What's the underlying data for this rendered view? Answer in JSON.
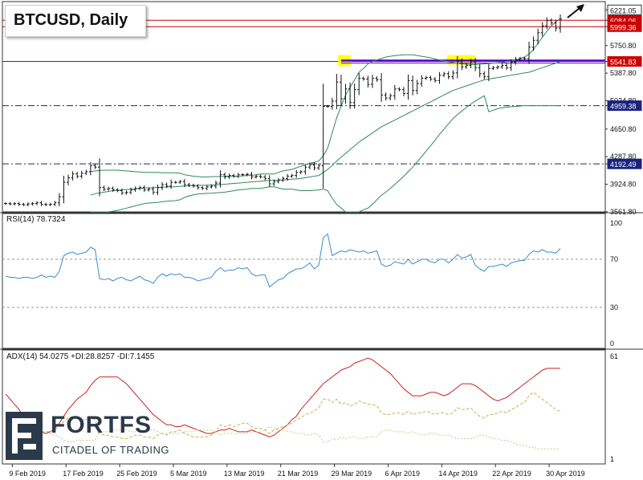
{
  "title": "BTCUSD, Daily",
  "brand": {
    "name": "FORTFS",
    "tagline": "CITADEL OF TRADING"
  },
  "colors": {
    "candle": "#111111",
    "bollinger": "#2e8b57",
    "rsi": "#3c8dd0",
    "adx": "#cc2222",
    "di_plus": "#c8b45a",
    "di_minus": "#c8c890",
    "level_red": "#cc0000",
    "level_blue": "#1a237e",
    "highlight": "#ffff00",
    "purple": "#5500cc"
  },
  "chart_data": [
    {
      "type": "candlestick",
      "title": "BTCUSD, Daily",
      "yticks": [
        "6221.05",
        "6084.06",
        "5999.36",
        "5750.80",
        "5541.83",
        "5387.80",
        "5024.80",
        "4959.38",
        "4650.80",
        "4287.80",
        "4192.49",
        "3924.80",
        "3561.80"
      ],
      "ylim": [
        3560,
        6330
      ],
      "price_tags": [
        {
          "label": "6221.05",
          "value": 6221.05,
          "style": "plain"
        },
        {
          "label": "6084.06",
          "value": 6084.06,
          "style": "red"
        },
        {
          "label": "5999.36",
          "value": 5999.36,
          "style": "red"
        },
        {
          "label": "5541.83",
          "value": 5541.83,
          "style": "red"
        },
        {
          "label": "4959.38",
          "value": 4959.38,
          "style": "blue"
        },
        {
          "label": "4192.49",
          "value": 4192.49,
          "style": "blue"
        }
      ],
      "levels": [
        {
          "value": 6084.06,
          "style": "solid-red"
        },
        {
          "value": 5999.36,
          "style": "solid-red"
        },
        {
          "value": 5541.83,
          "style": "solid-red"
        },
        {
          "value": 4959.38,
          "style": "dashdot-blue"
        },
        {
          "value": 4192.49,
          "style": "dashdot-blue"
        }
      ],
      "closes": [
        3670,
        3665,
        3670,
        3660,
        3655,
        3665,
        3670,
        3680,
        3660,
        3655,
        3660,
        3680,
        3760,
        3950,
        4010,
        4060,
        4030,
        4070,
        4090,
        4170,
        4150,
        3880,
        3860,
        3870,
        3850,
        3840,
        3810,
        3820,
        3850,
        3870,
        3880,
        3850,
        3860,
        3820,
        3880,
        3920,
        3900,
        3950,
        3950,
        3960,
        3920,
        3910,
        3900,
        3880,
        3870,
        3890,
        3900,
        3940,
        4050,
        4020,
        4040,
        4030,
        4050,
        4050,
        4055,
        4020,
        4030,
        4020,
        4000,
        3930,
        3960,
        3980,
        4000,
        4030,
        4040,
        4080,
        4090,
        4150,
        4180,
        4140,
        4170,
        4950,
        4950,
        5020,
        5270,
        5050,
        5180,
        5000,
        5170,
        5320,
        5310,
        5240,
        5320,
        5300,
        5100,
        5060,
        5090,
        5180,
        5170,
        5120,
        5290,
        5160,
        5250,
        5320,
        5330,
        5310,
        5290,
        5360,
        5380,
        5340,
        5390,
        5540,
        5470,
        5490,
        5540,
        5460,
        5380,
        5340,
        5450,
        5460,
        5470,
        5490,
        5460,
        5530,
        5570,
        5580,
        5580,
        5730,
        5820,
        5920,
        6010,
        6080,
        6050,
        5980,
        6100
      ],
      "bollinger": {
        "upper": [
          null,
          null,
          null,
          null,
          null,
          null,
          null,
          null,
          null,
          null,
          null,
          null,
          null,
          null,
          null,
          null,
          null,
          null,
          null,
          4090,
          4100,
          4105,
          4110,
          4110,
          4110,
          4110,
          4105,
          4100,
          4095,
          4090,
          4085,
          4080,
          4080,
          4080,
          4080,
          4075,
          4075,
          4075,
          4075,
          4070,
          4050,
          4040,
          4030,
          4025,
          4020,
          4020,
          4025,
          4025,
          4025,
          4030,
          4030,
          4030,
          4030,
          4035,
          4040,
          4040,
          4050,
          4060,
          4060,
          4060,
          4060,
          4080,
          4100,
          4110,
          4120,
          4140,
          4160,
          4180,
          4200,
          4215,
          4230,
          4300,
          4400,
          4600,
          4800,
          4950,
          5100,
          5200,
          5300,
          5400,
          5450,
          5510,
          5540,
          5560,
          5580,
          5600,
          5610,
          5620,
          5625,
          5630,
          5630,
          5630,
          5620,
          5610,
          5600,
          5590,
          5575,
          5560,
          5550,
          5540,
          5530,
          5520,
          5510,
          5505,
          5500,
          5500,
          5505,
          5510,
          5515,
          5520,
          5525,
          5530,
          5540,
          5550,
          5560,
          5580,
          5600,
          5640,
          5700,
          5780,
          5860,
          5940,
          6010,
          6060,
          6110
        ],
        "middle": [
          null,
          null,
          null,
          null,
          null,
          null,
          null,
          null,
          null,
          null,
          null,
          null,
          null,
          null,
          null,
          null,
          null,
          null,
          null,
          3780,
          3800,
          3810,
          3820,
          3830,
          3840,
          3845,
          3850,
          3855,
          3860,
          3865,
          3870,
          3875,
          3878,
          3880,
          3882,
          3885,
          3888,
          3890,
          3892,
          3895,
          3900,
          3905,
          3908,
          3910,
          3910,
          3912,
          3915,
          3918,
          3920,
          3925,
          3930,
          3935,
          3940,
          3945,
          3950,
          3955,
          3960,
          3965,
          3970,
          3975,
          3975,
          3978,
          3980,
          3985,
          3990,
          3995,
          4000,
          4010,
          4020,
          4030,
          4040,
          4080,
          4120,
          4170,
          4230,
          4280,
          4330,
          4380,
          4430,
          4480,
          4520,
          4560,
          4600,
          4640,
          4680,
          4710,
          4740,
          4770,
          4800,
          4830,
          4860,
          4890,
          4920,
          4950,
          4980,
          5010,
          5040,
          5070,
          5100,
          5130,
          5160,
          5180,
          5200,
          5220,
          5240,
          5260,
          5280,
          5300,
          5310,
          5320,
          5330,
          5340,
          5350,
          5360,
          5370,
          5380,
          5390,
          5400,
          5420,
          5440,
          5460,
          5480,
          5500,
          5520,
          5540
        ],
        "lower": [
          null,
          null,
          null,
          null,
          null,
          null,
          null,
          null,
          null,
          null,
          null,
          null,
          null,
          null,
          null,
          null,
          null,
          null,
          null,
          3470,
          3500,
          3515,
          3530,
          3550,
          3570,
          3580,
          3595,
          3610,
          3625,
          3640,
          3655,
          3670,
          3676,
          3680,
          3684,
          3695,
          3700,
          3705,
          3709,
          3720,
          3750,
          3770,
          3786,
          3795,
          3800,
          3804,
          3805,
          3811,
          3815,
          3820,
          3830,
          3840,
          3850,
          3855,
          3860,
          3870,
          3870,
          3870,
          3880,
          3890,
          3890,
          3876,
          3860,
          3860,
          3860,
          3850,
          3840,
          3840,
          3840,
          3845,
          3850,
          3860,
          3840,
          3740,
          3660,
          3610,
          3560,
          3560,
          3560,
          3560,
          3590,
          3610,
          3660,
          3720,
          3780,
          3820,
          3870,
          3920,
          3975,
          4030,
          4090,
          4150,
          4220,
          4290,
          4360,
          4430,
          4505,
          4580,
          4650,
          4720,
          4790,
          4840,
          4890,
          4935,
          4980,
          5020,
          5055,
          5090,
          4880,
          4900,
          4920,
          4930,
          4940,
          4945,
          4950,
          4955,
          4960,
          4960,
          4960,
          4960,
          4960,
          4960,
          4960,
          4960,
          4960
        ]
      }
    },
    {
      "type": "line",
      "legend": "RSI(14) 78.7324",
      "yticks": [
        "100",
        "70",
        "30",
        "0"
      ],
      "levels": [
        70,
        30
      ],
      "ylim": [
        0,
        100
      ],
      "series": [
        {
          "values": [
            56,
            55,
            55,
            54,
            55,
            55,
            54,
            55,
            57,
            55,
            56,
            55,
            60,
            73,
            75,
            76,
            74,
            75,
            76,
            80,
            78,
            54,
            53,
            54,
            52,
            54,
            55,
            53,
            52,
            54,
            56,
            53,
            52,
            50,
            55,
            58,
            56,
            58,
            57,
            58,
            55,
            55,
            54,
            52,
            53,
            54,
            55,
            60,
            63,
            60,
            61,
            61,
            63,
            62,
            63,
            58,
            56,
            57,
            57,
            47,
            50,
            53,
            54,
            58,
            60,
            62,
            62,
            64,
            67,
            62,
            65,
            88,
            91,
            73,
            75,
            77,
            76,
            78,
            77,
            76,
            77,
            75,
            76,
            77,
            66,
            64,
            65,
            68,
            67,
            66,
            70,
            66,
            68,
            70,
            70,
            68,
            67,
            70,
            70,
            67,
            70,
            74,
            71,
            72,
            74,
            65,
            62,
            60,
            64,
            64,
            65,
            66,
            64,
            67,
            68,
            69,
            69,
            74,
            77,
            76,
            78,
            76,
            76,
            75,
            79
          ]
        }
      ]
    },
    {
      "type": "line",
      "legend": "ADX(14) 54.0275 +DI:28.8257 -DI:7.1455",
      "yticks": [
        "61",
        "1"
      ],
      "ylim": [
        1,
        61
      ],
      "series": [
        {
          "values": [
            39,
            36,
            33,
            30,
            26,
            24,
            20,
            18,
            17,
            16,
            17,
            19,
            22,
            26,
            30,
            33,
            36,
            38,
            40,
            44,
            47,
            49,
            49,
            49,
            49,
            49,
            47,
            45,
            42,
            39,
            36,
            33,
            30,
            27,
            25,
            23,
            21,
            21,
            20,
            20,
            21,
            20,
            19,
            18,
            17,
            16,
            16,
            17,
            18,
            18,
            19,
            18,
            17,
            17,
            17,
            18,
            17,
            16,
            15,
            14,
            15,
            17,
            19,
            21,
            24,
            26,
            30,
            33,
            36,
            39,
            42,
            45,
            47,
            49,
            51,
            53,
            54,
            55,
            57,
            58,
            59,
            60,
            59,
            57,
            55,
            53,
            51,
            48,
            45,
            42,
            40,
            38,
            38,
            38,
            39,
            40,
            40,
            39,
            38,
            39,
            41,
            43,
            45,
            45,
            45,
            44,
            42,
            40,
            38,
            36,
            35,
            36,
            37,
            39,
            41,
            43,
            45,
            47,
            49,
            51,
            53,
            54,
            54,
            54,
            54
          ]
        },
        {
          "values": [
            25,
            24,
            22,
            21,
            20,
            19,
            18,
            18,
            17,
            17,
            17,
            18,
            20,
            23,
            25,
            26,
            25,
            24,
            24,
            25,
            24,
            16,
            15,
            15,
            14,
            14,
            13,
            13,
            14,
            15,
            15,
            14,
            14,
            13,
            15,
            16,
            15,
            17,
            17,
            18,
            16,
            15,
            14,
            14,
            14,
            14,
            15,
            17,
            21,
            20,
            21,
            20,
            21,
            22,
            22,
            20,
            19,
            19,
            18,
            16,
            18,
            19,
            20,
            21,
            22,
            24,
            25,
            27,
            28,
            29,
            31,
            36,
            36,
            34,
            36,
            33,
            34,
            32,
            33,
            35,
            34,
            33,
            33,
            32,
            28,
            27,
            27,
            28,
            28,
            27,
            29,
            27,
            28,
            28,
            29,
            28,
            27,
            28,
            28,
            27,
            28,
            31,
            30,
            30,
            31,
            28,
            26,
            25,
            27,
            27,
            28,
            29,
            28,
            30,
            31,
            33,
            34,
            38,
            40,
            38,
            36,
            34,
            32,
            30,
            29
          ]
        },
        {
          "values": [
            13,
            13,
            14,
            14,
            14,
            15,
            15,
            15,
            16,
            16,
            16,
            15,
            14,
            12,
            11,
            11,
            12,
            12,
            12,
            12,
            12,
            17,
            17,
            17,
            18,
            18,
            18,
            18,
            17,
            17,
            17,
            17,
            18,
            18,
            17,
            16,
            16,
            16,
            16,
            16,
            17,
            17,
            17,
            18,
            18,
            18,
            18,
            17,
            15,
            16,
            16,
            16,
            16,
            16,
            16,
            17,
            17,
            17,
            18,
            20,
            19,
            18,
            18,
            17,
            17,
            16,
            16,
            15,
            15,
            16,
            15,
            11,
            11,
            13,
            12,
            14,
            13,
            14,
            14,
            13,
            13,
            14,
            14,
            14,
            17,
            18,
            18,
            17,
            17,
            17,
            16,
            17,
            16,
            15,
            15,
            16,
            16,
            15,
            15,
            15,
            14,
            13,
            13,
            13,
            13,
            14,
            15,
            15,
            14,
            13,
            13,
            12,
            12,
            11,
            10,
            9,
            9,
            8,
            8,
            7,
            7,
            7,
            7,
            7,
            7
          ]
        }
      ]
    }
  ],
  "x_axis": {
    "labels": [
      {
        "label": "9 Feb 2019",
        "index": 1
      },
      {
        "label": "17 Feb 2019",
        "index": 9
      },
      {
        "label": "25 Feb 2019",
        "index": 17
      },
      {
        "label": "5 Mar 2019",
        "index": 25
      },
      {
        "label": "13 Mar 2019",
        "index": 33
      },
      {
        "label": "21 Mar 2019",
        "index": 41
      },
      {
        "label": "29 Mar 2019",
        "index": 49
      },
      {
        "label": "6 Apr 2019",
        "index": 57
      },
      {
        "label": "14 Apr 2019",
        "index": 65
      },
      {
        "label": "22 Apr 2019",
        "index": 73
      },
      {
        "label": "30 Apr 2019",
        "index": 81
      }
    ]
  }
}
